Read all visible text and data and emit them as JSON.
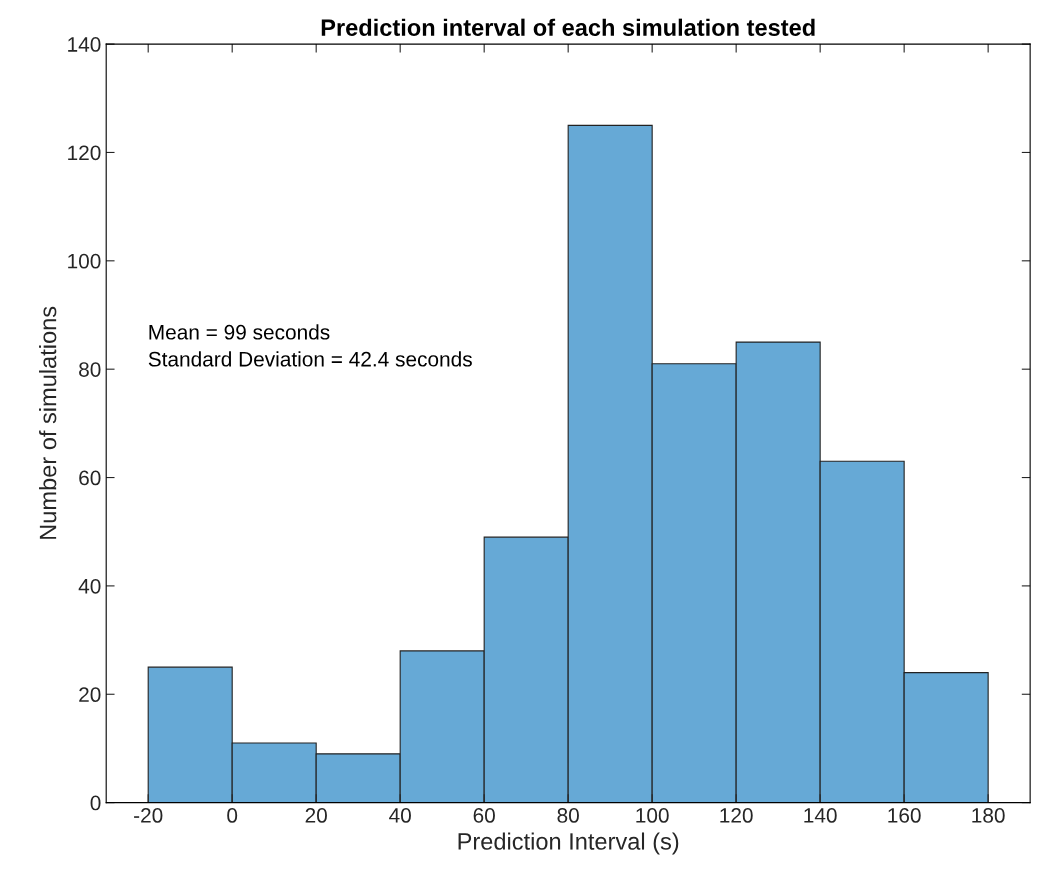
{
  "chart_data": {
    "type": "histogram",
    "title": "Prediction interval of each simulation tested",
    "xlabel": "Prediction Interval (s)",
    "ylabel": "Number of simulations",
    "bins": [
      -20,
      0,
      20,
      40,
      60,
      80,
      100,
      120,
      140,
      160,
      180
    ],
    "values": [
      25,
      11,
      9,
      28,
      49,
      125,
      81,
      85,
      63,
      24
    ],
    "color": "#66a9d6",
    "xlim": [
      -30,
      190
    ],
    "xticks": [
      -20,
      0,
      20,
      40,
      60,
      80,
      100,
      120,
      140,
      160,
      180
    ],
    "ylim": [
      0,
      140
    ],
    "yticks": [
      0,
      20,
      40,
      60,
      80,
      100,
      120,
      140
    ],
    "grid": false,
    "annotations": [
      "Mean = 99 seconds\nStandard Deviation = 42.4 seconds"
    ]
  }
}
